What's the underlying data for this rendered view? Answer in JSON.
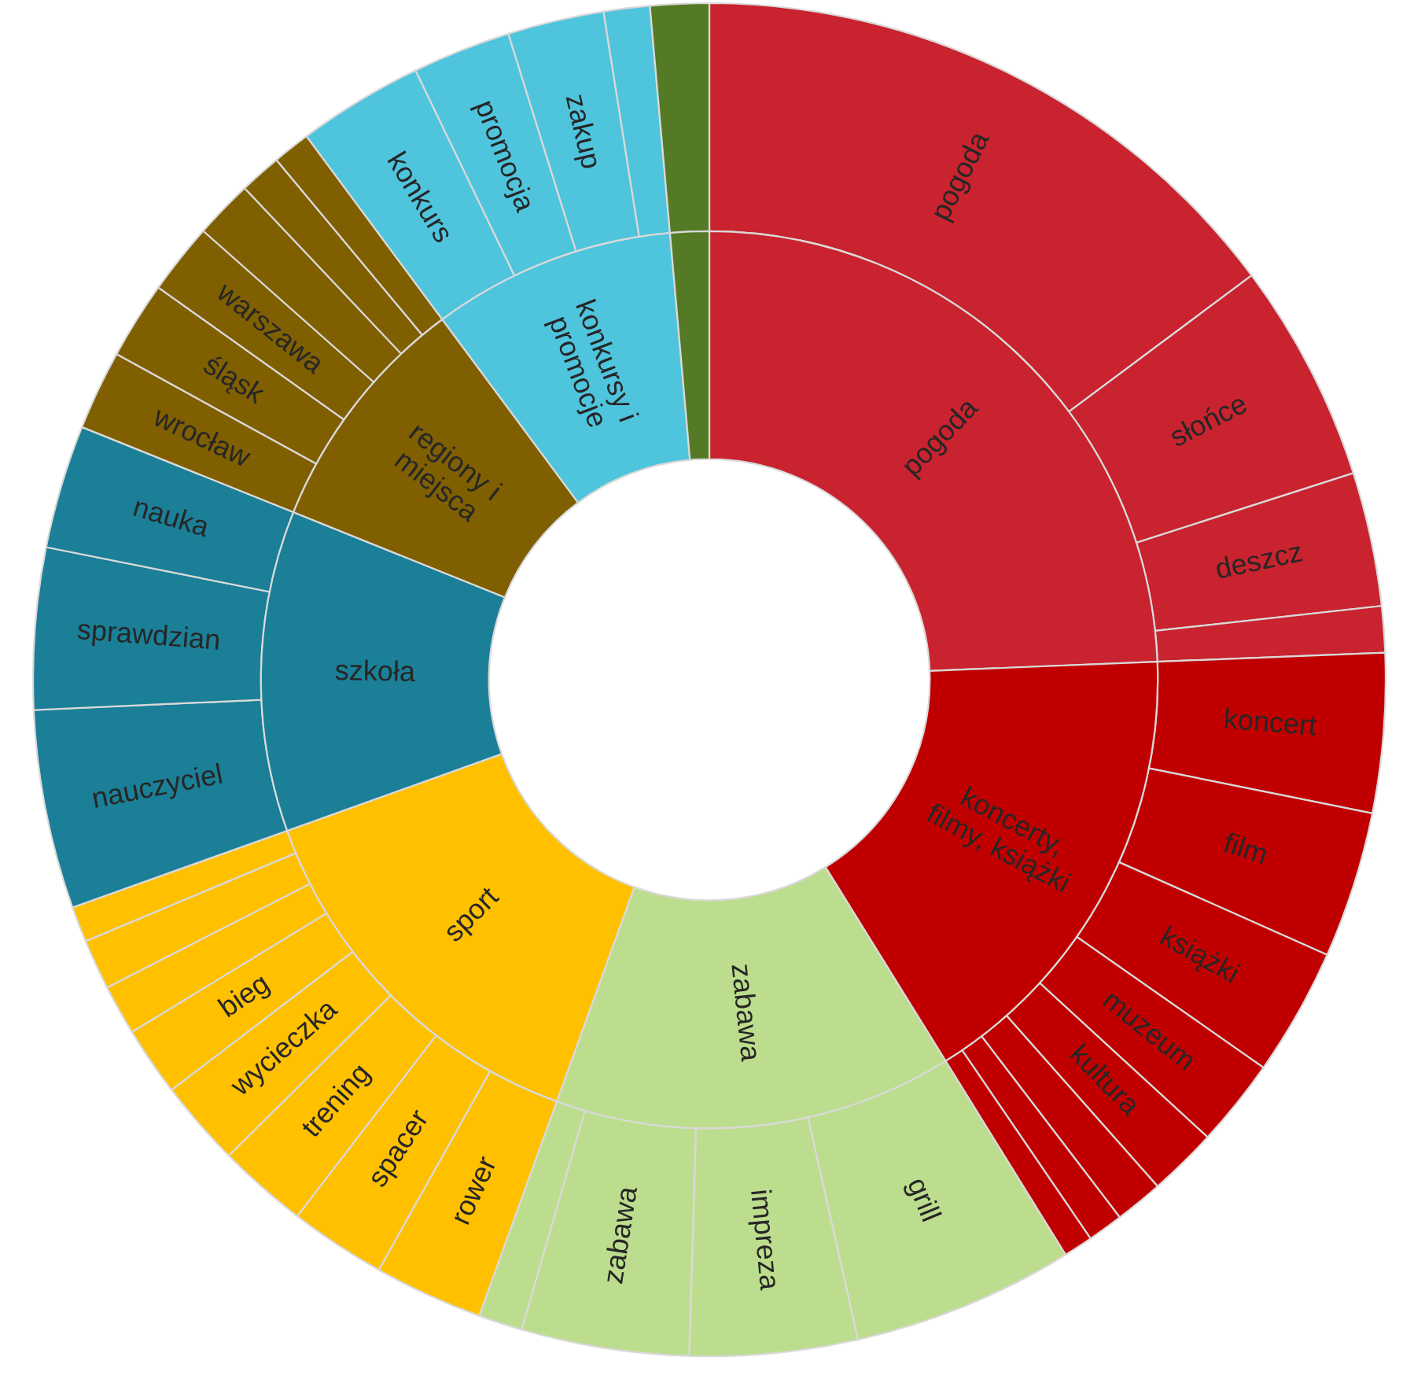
{
  "chart_data": {
    "type": "donut",
    "categories": [
      "pogoda",
      "słońce",
      "deszcz",
      null,
      "koncert",
      "film",
      "książki",
      "muzeum",
      "kultura",
      null,
      null,
      null,
      "grill",
      "impreza",
      "zabawa",
      null,
      "rower",
      "spacer",
      "trening",
      "wycieczka",
      "bieg",
      null,
      null,
      null,
      "nauczyciel",
      "sprawdzian",
      "nauka",
      "wrocław",
      "śląsk",
      "warszawa",
      null,
      null,
      null,
      "konkurs",
      "promocja",
      "zakup",
      null,
      null
    ],
    "annotations": [
      "pogoda",
      "koncerty,\nfilmy, książki",
      "zabawa",
      "sport",
      "szkoła",
      "regiony i\nmiejsca",
      "konkursy i\npromocje"
    ],
    "series": [
      {
        "values": [
          14.8,
          5.25,
          3.2,
          1.1,
          3.8,
          3.5,
          3.05,
          2.1,
          1.65,
          1.15,
          0.85,
          0.7,
          5.3,
          4.0,
          4.0,
          1.05,
          2.6,
          2.3,
          2.15,
          2.05,
          1.65,
          1.2,
          1.2,
          0.85,
          4.75,
          3.85,
          2.95,
          1.9,
          1.85,
          1.7,
          1.4,
          1.0,
          0.9,
          3.0,
          2.35,
          2.3,
          1.1,
          1.4
        ],
        "colors": [
          "#c8232e",
          "#c8232e",
          "#c8232e",
          "#c8232e",
          "#c00000",
          "#c00000",
          "#c00000",
          "#c00000",
          "#c00000",
          "#c00000",
          "#c00000",
          "#c00000",
          "#bddd8e",
          "#bddd8e",
          "#bddd8e",
          "#bddd8e",
          "#ffc000",
          "#ffc000",
          "#ffc000",
          "#ffc000",
          "#ffc000",
          "#ffc000",
          "#ffc000",
          "#ffc000",
          "#1b7f97",
          "#1b7f97",
          "#1b7f97",
          "#7f5f00",
          "#7f5f00",
          "#7f5f00",
          "#7f5f00",
          "#7f5f00",
          "#7f5f00",
          "#4fc4dd",
          "#4fc4dd",
          "#4fc4dd",
          "#4fc4dd",
          "#557a25"
        ]
      },
      {
        "values": [
          24.35,
          null,
          null,
          null,
          16.8,
          null,
          null,
          null,
          null,
          null,
          null,
          null,
          14.35,
          null,
          null,
          null,
          14.0,
          null,
          null,
          null,
          null,
          null,
          null,
          null,
          11.55,
          null,
          null,
          8.75,
          null,
          null,
          null,
          null,
          null,
          8.75,
          null,
          null,
          null,
          1.4
        ],
        "colors": [
          "#c8232e",
          null,
          null,
          null,
          "#c00000",
          null,
          null,
          null,
          null,
          null,
          null,
          null,
          "#bddd8e",
          null,
          null,
          null,
          "#ffc000",
          null,
          null,
          null,
          null,
          null,
          null,
          null,
          "#1b7f97",
          null,
          null,
          "#7f5f00",
          null,
          null,
          null,
          null,
          null,
          "#4fc4dd",
          null,
          null,
          null,
          "#557a25"
        ]
      }
    ]
  }
}
